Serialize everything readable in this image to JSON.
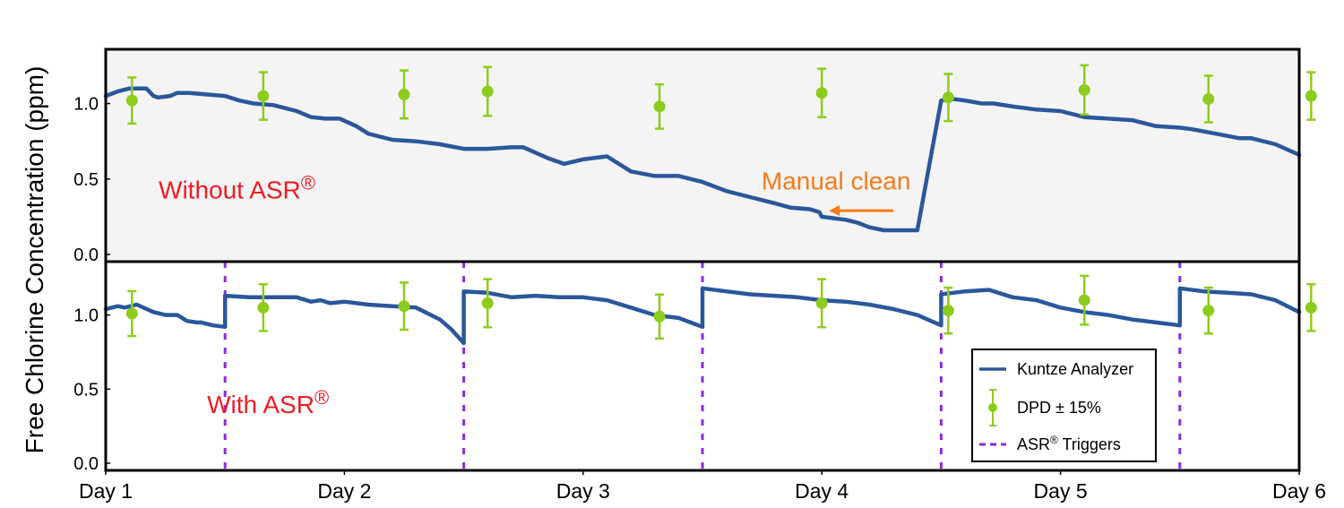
{
  "chart_data": {
    "type": "line",
    "ylabel": "Free Chlorine Concentration (ppm)",
    "x_tick_labels": [
      "Day 1",
      "Day 2",
      "Day 3",
      "Day 4",
      "Day 5",
      "Day 6"
    ],
    "xlim": [
      1,
      6
    ],
    "colors": {
      "analyzer": "#2b579a",
      "dpd": "#8ccc1c",
      "trigger": "#8a2be2",
      "panel_top_bg": "#f4f4f4",
      "annotation_red": "#ee1c25",
      "annotation_orange": "#f47a1a"
    },
    "legend": {
      "placement": "bottom-right of lower panel",
      "entries": [
        {
          "label": "Kuntze Analyzer",
          "kind": "line"
        },
        {
          "label": "DPD ± 15%",
          "kind": "errorbar"
        },
        {
          "label_main": "ASR",
          "label_sup": "®",
          "label_rest": " Triggers",
          "kind": "dashed"
        }
      ]
    },
    "panels": [
      {
        "name": "without",
        "annotation_main": "Without ASR",
        "annotation_sup": "®",
        "annotation_x": 1.55,
        "annotation_y": 0.37,
        "callout": {
          "text": "Manual clean",
          "text_x": 4.06,
          "text_y": 0.43,
          "arrow_from_x": 4.3,
          "arrow_to_x": 4.03,
          "arrow_y": 0.29
        },
        "ylim": [
          0,
          1.3
        ],
        "yticks": [
          0.0,
          0.5,
          1.0
        ],
        "ytick_labels": [
          "0.0",
          "0.5",
          "1.0"
        ],
        "analyzer": {
          "x": [
            1.0,
            1.05,
            1.1,
            1.17,
            1.2,
            1.22,
            1.27,
            1.3,
            1.35,
            1.42,
            1.5,
            1.56,
            1.62,
            1.7,
            1.75,
            1.8,
            1.86,
            1.92,
            1.98,
            2.05,
            2.1,
            2.2,
            2.3,
            2.4,
            2.5,
            2.6,
            2.7,
            2.75,
            2.85,
            2.92,
            3.0,
            3.1,
            3.2,
            3.3,
            3.4,
            3.5,
            3.6,
            3.7,
            3.8,
            3.87,
            3.95,
            3.99,
            4.0,
            4.05,
            4.1,
            4.15,
            4.2,
            4.26,
            4.3,
            4.4,
            4.5,
            4.55,
            4.6,
            4.67,
            4.72,
            4.8,
            4.9,
            5.0,
            5.05,
            5.1,
            5.2,
            5.3,
            5.35,
            5.4,
            5.5,
            5.55,
            5.65,
            5.75,
            5.8,
            5.9,
            6.0
          ],
          "y": [
            1.05,
            1.08,
            1.1,
            1.1,
            1.05,
            1.04,
            1.05,
            1.07,
            1.07,
            1.06,
            1.05,
            1.02,
            1.0,
            0.99,
            0.97,
            0.95,
            0.91,
            0.9,
            0.9,
            0.85,
            0.8,
            0.76,
            0.75,
            0.73,
            0.7,
            0.7,
            0.71,
            0.71,
            0.64,
            0.6,
            0.63,
            0.65,
            0.55,
            0.52,
            0.52,
            0.48,
            0.42,
            0.38,
            0.34,
            0.31,
            0.3,
            0.28,
            0.25,
            0.24,
            0.23,
            0.21,
            0.18,
            0.16,
            0.16,
            0.16,
            1.02,
            1.03,
            1.02,
            1.0,
            1.0,
            0.98,
            0.96,
            0.95,
            0.93,
            0.91,
            0.9,
            0.89,
            0.87,
            0.85,
            0.84,
            0.83,
            0.8,
            0.77,
            0.77,
            0.73,
            0.66
          ]
        },
        "dpd": {
          "x": [
            1.11,
            1.66,
            2.25,
            2.6,
            3.32,
            4.0,
            4.53,
            5.1,
            5.62,
            6.05
          ],
          "y": [
            1.02,
            1.05,
            1.06,
            1.08,
            0.98,
            1.07,
            1.04,
            1.09,
            1.03,
            1.05
          ]
        }
      },
      {
        "name": "with",
        "annotation_main": "With ASR",
        "annotation_sup": "®",
        "annotation_x": 1.68,
        "annotation_y": 0.34,
        "ylim": [
          0,
          1.3
        ],
        "yticks": [
          0.0,
          0.5,
          1.0
        ],
        "ytick_labels": [
          "0.0",
          "0.5",
          "1.0"
        ],
        "analyzer": {
          "x": [
            1.0,
            1.05,
            1.08,
            1.13,
            1.2,
            1.25,
            1.3,
            1.34,
            1.38,
            1.4,
            1.45,
            1.5,
            1.5,
            1.6,
            1.7,
            1.8,
            1.86,
            1.9,
            1.94,
            2.0,
            2.1,
            2.2,
            2.3,
            2.4,
            2.45,
            2.5,
            2.5,
            2.6,
            2.7,
            2.8,
            2.9,
            3.0,
            3.1,
            3.2,
            3.3,
            3.4,
            3.45,
            3.5,
            3.5,
            3.6,
            3.7,
            3.8,
            3.9,
            4.0,
            4.1,
            4.2,
            4.3,
            4.4,
            4.5,
            4.5,
            4.6,
            4.7,
            4.8,
            4.9,
            5.0,
            5.1,
            5.2,
            5.3,
            5.4,
            5.5,
            5.5,
            5.6,
            5.7,
            5.8,
            5.9,
            6.0
          ],
          "y": [
            1.04,
            1.06,
            1.05,
            1.07,
            1.02,
            1.0,
            1.0,
            0.96,
            0.95,
            0.95,
            0.93,
            0.92,
            1.13,
            1.12,
            1.12,
            1.12,
            1.09,
            1.1,
            1.08,
            1.09,
            1.07,
            1.06,
            1.05,
            0.97,
            0.9,
            0.81,
            1.16,
            1.15,
            1.12,
            1.13,
            1.12,
            1.12,
            1.1,
            1.05,
            1.0,
            0.98,
            0.95,
            0.92,
            1.18,
            1.16,
            1.14,
            1.13,
            1.12,
            1.1,
            1.09,
            1.07,
            1.04,
            1.0,
            0.93,
            1.14,
            1.16,
            1.17,
            1.12,
            1.1,
            1.05,
            1.02,
            1.0,
            0.97,
            0.95,
            0.93,
            1.18,
            1.16,
            1.15,
            1.14,
            1.1,
            1.02
          ]
        },
        "dpd": {
          "x": [
            1.11,
            1.66,
            2.25,
            2.6,
            3.32,
            4.0,
            4.53,
            5.1,
            5.62,
            6.05
          ],
          "y": [
            1.01,
            1.05,
            1.06,
            1.08,
            0.99,
            1.08,
            1.03,
            1.1,
            1.03,
            1.05
          ]
        }
      }
    ],
    "triggers_x": [
      1.5,
      2.5,
      3.5,
      4.5,
      5.5
    ],
    "dpd_error_fraction": 0.15
  }
}
